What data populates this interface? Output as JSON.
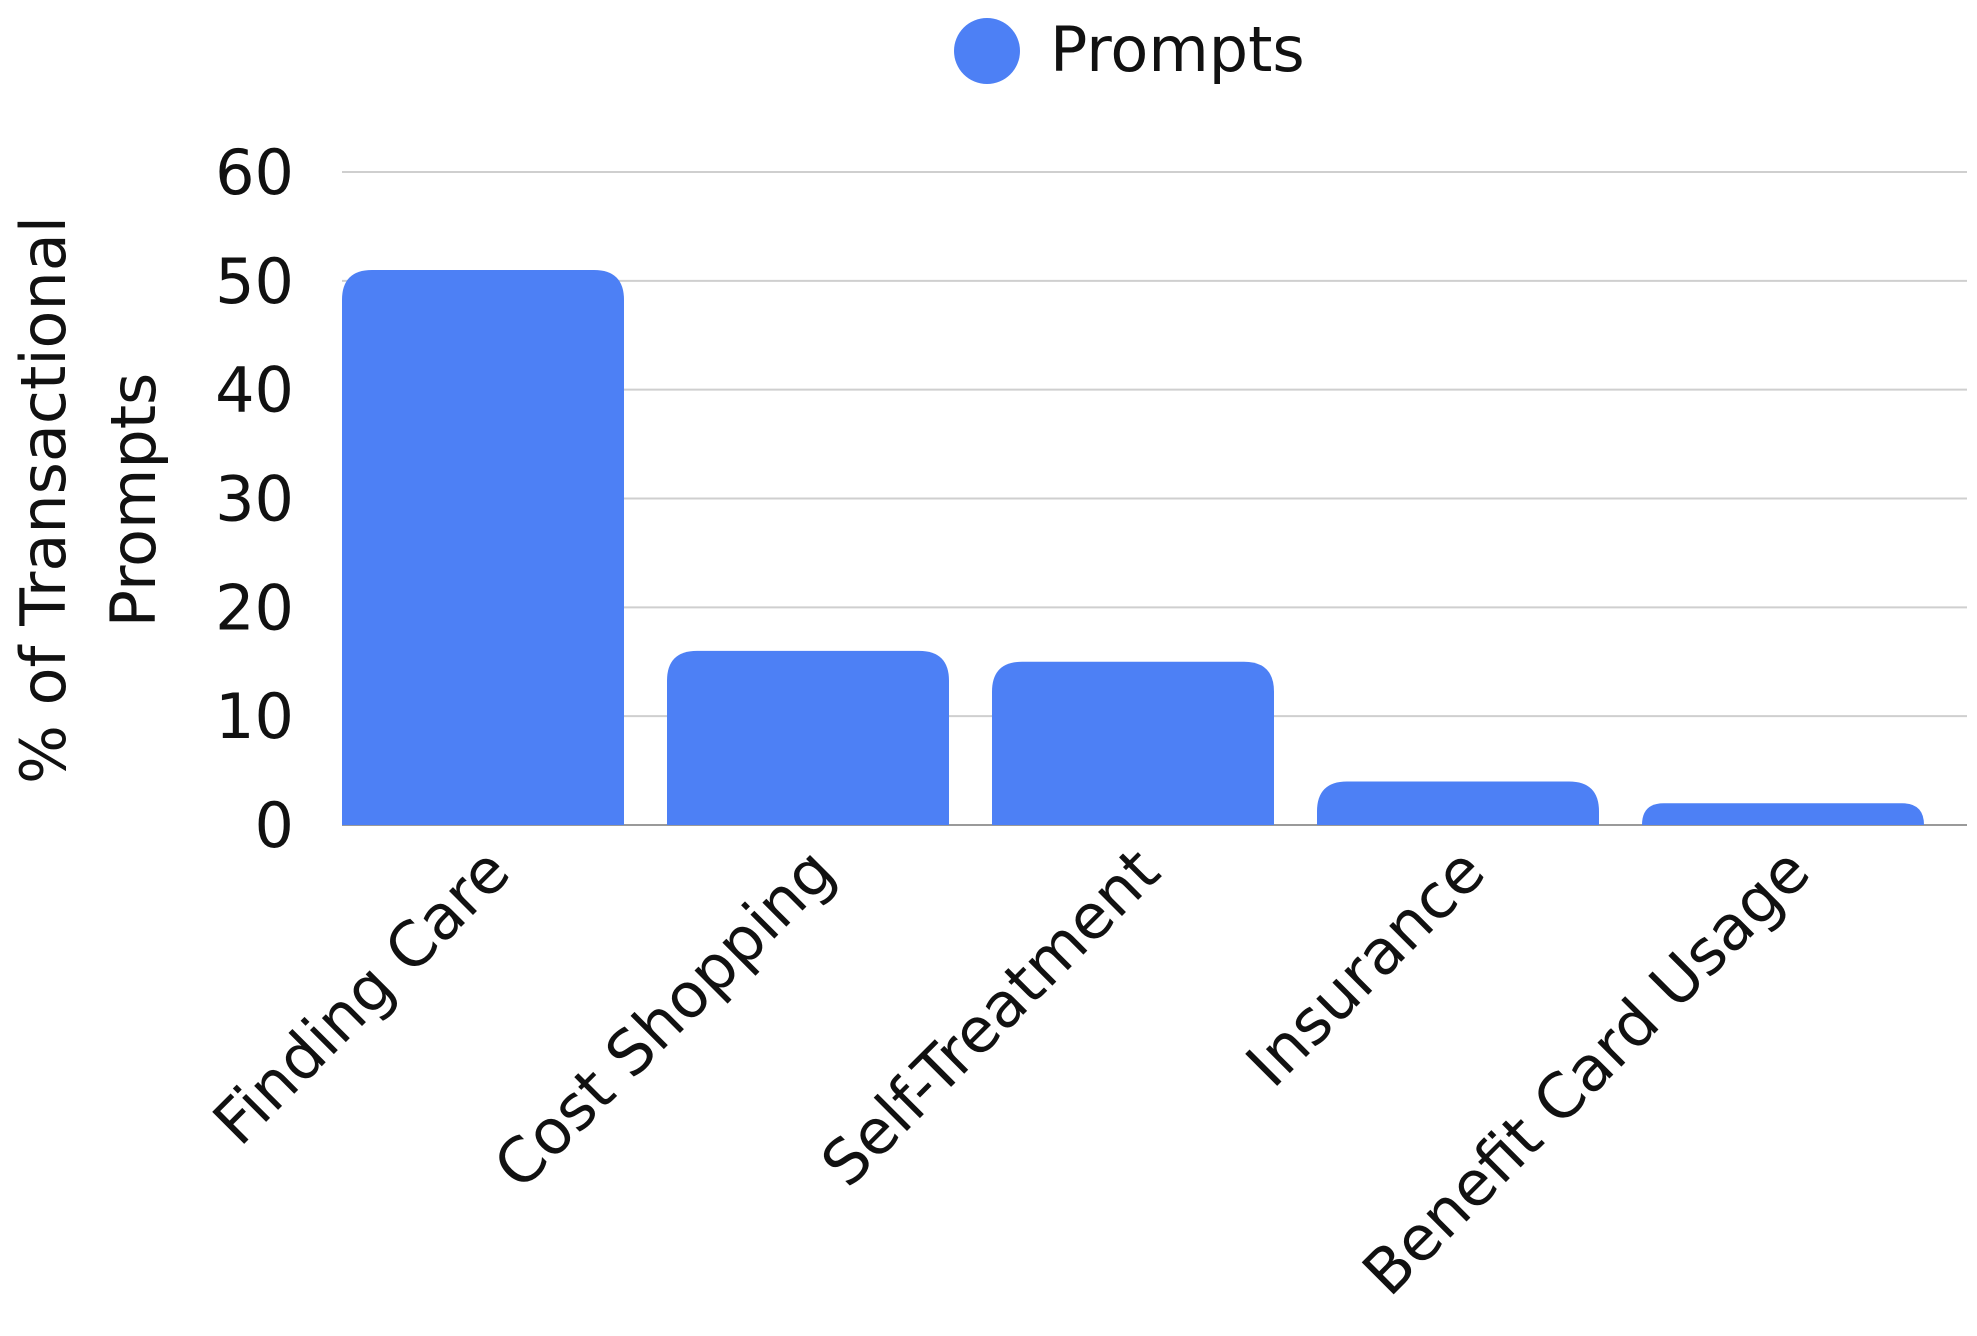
{
  "chart_data": {
    "type": "bar",
    "categories": [
      "Finding Care",
      "Cost Shopping",
      "Self-Treatment",
      "Insurance",
      "Benefit Card Usage"
    ],
    "series": [
      {
        "name": "Prompts",
        "values": [
          51,
          16,
          15,
          4,
          2
        ],
        "color": "#4d80f5"
      }
    ],
    "ylabel": "% of Transactional Prompts",
    "ylabel_lines": [
      "% of Transactional",
      "Prompts"
    ],
    "ylim": [
      0,
      60
    ],
    "yticks": [
      "0",
      "10",
      "20",
      "30",
      "40",
      "50",
      "60"
    ],
    "grid": true,
    "legend_position": "top-center"
  }
}
